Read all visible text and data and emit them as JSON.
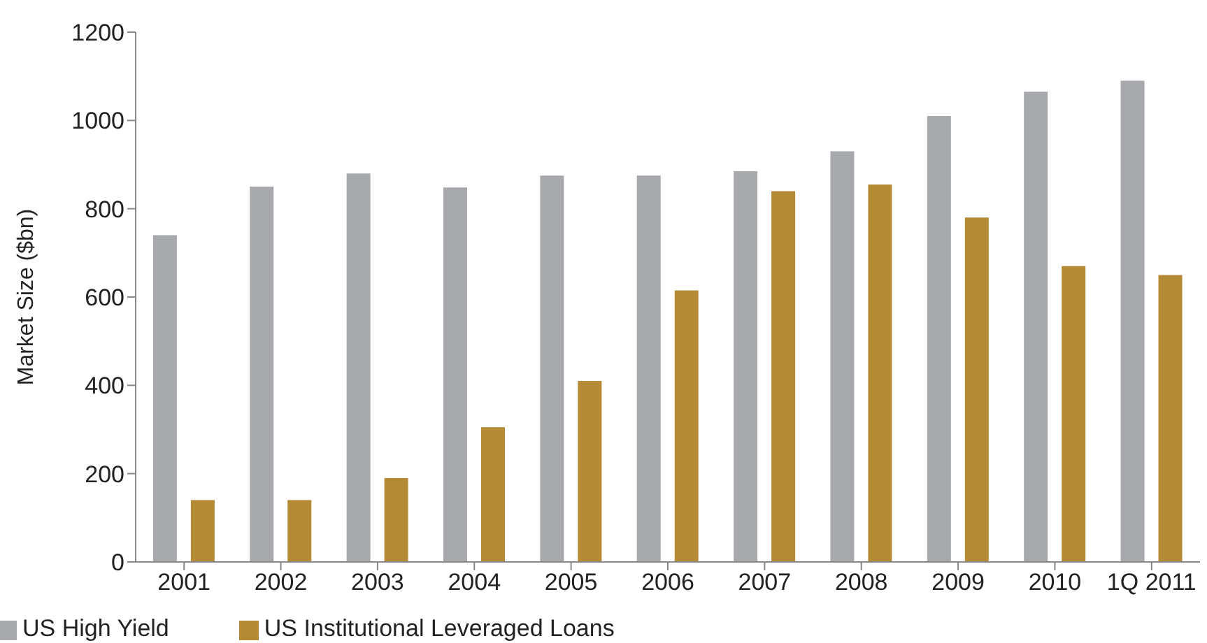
{
  "chart_data": {
    "type": "bar",
    "ylabel": "Market Size ($bn)",
    "categories": [
      "2001",
      "2002",
      "2003",
      "2004",
      "2005",
      "2006",
      "2007",
      "2008",
      "2009",
      "2010",
      "1Q 2011"
    ],
    "series": [
      {
        "name": "US High Yield",
        "color": "#a7a9ac",
        "values": [
          740,
          850,
          880,
          848,
          875,
          875,
          885,
          930,
          1010,
          1065,
          1090
        ]
      },
      {
        "name": "US Institutional Leveraged Loans",
        "color": "#b58a34",
        "values": [
          140,
          140,
          190,
          305,
          410,
          615,
          840,
          855,
          780,
          670,
          650
        ]
      }
    ],
    "ylim": [
      0,
      1200
    ],
    "yticks": [
      0,
      200,
      400,
      600,
      800,
      1000,
      1200
    ],
    "grid": false,
    "legend": "bottom left"
  }
}
